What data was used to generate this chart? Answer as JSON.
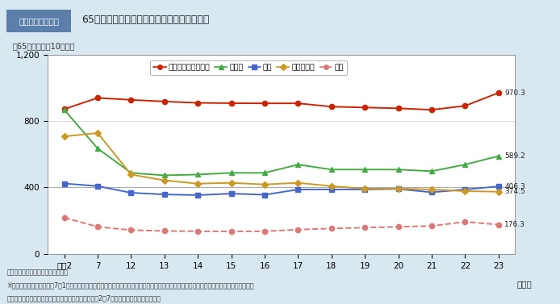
{
  "fig_label": "図１－２－３－７",
  "fig_title": "65歳以上の高齢者の主な死因別死亡率の推移",
  "ylabel": "（65歳以上人口10万対）",
  "x_labels": [
    "平成2",
    "7",
    "12",
    "13",
    "14",
    "15",
    "16",
    "17",
    "18",
    "19",
    "20",
    "21",
    "22",
    "23"
  ],
  "ylim": [
    0,
    1200
  ],
  "yticks": [
    0,
    400,
    800,
    1200
  ],
  "ytick_labels": [
    "0",
    "400",
    "800",
    "1,200"
  ],
  "series": [
    {
      "name": "悪性新生物（がん）",
      "color": "#cc2200",
      "marker": "o",
      "linestyle": "-",
      "linewidth": 1.4,
      "markersize": 4.5,
      "fillstyle": "full",
      "values": [
        872,
        940,
        928,
        918,
        910,
        908,
        907,
        907,
        887,
        882,
        877,
        868,
        892,
        970.3
      ],
      "end_label": "970.3"
    },
    {
      "name": "心疾患",
      "color": "#44aa44",
      "marker": "^",
      "linestyle": "-",
      "linewidth": 1.4,
      "markersize": 5,
      "fillstyle": "full",
      "values": [
        868,
        635,
        488,
        473,
        478,
        488,
        488,
        538,
        508,
        508,
        508,
        498,
        538,
        589.2
      ],
      "end_label": "589.2"
    },
    {
      "name": "肺炎",
      "color": "#4466cc",
      "marker": "s",
      "linestyle": "-",
      "linewidth": 1.4,
      "markersize": 4.5,
      "fillstyle": "full",
      "values": [
        424,
        408,
        368,
        358,
        354,
        363,
        356,
        388,
        388,
        388,
        391,
        371,
        388,
        406.3
      ],
      "end_label": "406.3"
    },
    {
      "name": "脳血管疾患",
      "color": "#cc9922",
      "marker": "D",
      "linestyle": "-",
      "linewidth": 1.4,
      "markersize": 4,
      "fillstyle": "full",
      "values": [
        708,
        728,
        478,
        443,
        423,
        428,
        418,
        428,
        408,
        393,
        393,
        388,
        378,
        374.5
      ],
      "end_label": "374.5"
    },
    {
      "name": "老衰",
      "color": "#dd7777",
      "marker": "o",
      "linestyle": "--",
      "linewidth": 1.4,
      "markersize": 4.5,
      "fillstyle": "full",
      "values": [
        218,
        163,
        143,
        138,
        136,
        135,
        136,
        146,
        153,
        158,
        163,
        168,
        193,
        176.3
      ],
      "end_label": "176.3"
    }
  ],
  "background_color": "#d8e8f0",
  "plot_bg_color": "#ffffff",
  "grid_color": "#cccccc",
  "label_box_bg": "#5b7faa",
  "label_box_fg": "#ffffff",
  "footnote1": "資料：厚生労働省「人口動態統計」",
  "footnote2": "※心疾患においては、平成7年1月から死亡診断書に「死亡の原因欄には、疾患の終末期の状態としての心不全、呼吸不全等は書かないでくだ",
  "footnote3": "　さい。」という注意書きが追加された影響で、平成2～7年間で大きく減少している。"
}
